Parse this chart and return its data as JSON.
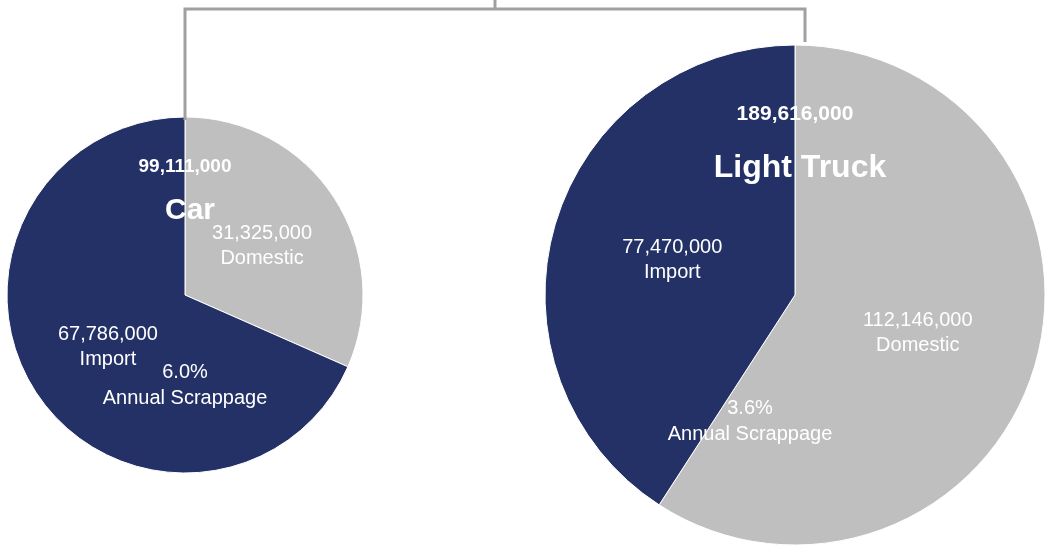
{
  "chart_data": [
    {
      "type": "pie",
      "title": "Car",
      "annotations": [
        "99,111,000",
        "6.0%\nAnnual Scrappage"
      ],
      "categories": [
        "Domestic",
        "Import"
      ],
      "values": [
        31325000,
        67786000
      ],
      "colors": [
        "#bfbfbf",
        "#233166"
      ],
      "value_labels": [
        "31,325,000",
        "67,786,000"
      ],
      "legend": false
    },
    {
      "type": "pie",
      "title": "Light Truck",
      "annotations": [
        "189,616,000",
        "3.6%\nAnnual Scrappage"
      ],
      "categories": [
        "Domestic",
        "Import"
      ],
      "values": [
        112146000,
        77470000
      ],
      "colors": [
        "#bfbfbf",
        "#233166"
      ],
      "value_labels": [
        "112,146,000",
        "77,470,000"
      ],
      "legend": false
    }
  ]
}
